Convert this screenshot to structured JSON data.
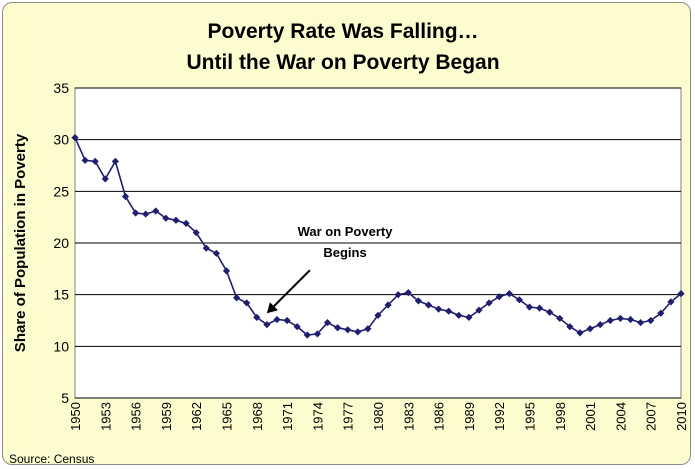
{
  "chart_data": {
    "type": "line",
    "title": [
      "Poverty Rate Was Falling…",
      "Until the War on Poverty Began"
    ],
    "ylabel": "Share of Population in Poverty",
    "xlabel": "",
    "ylim": [
      5,
      35
    ],
    "yticks": [
      5,
      10,
      15,
      20,
      25,
      30,
      35
    ],
    "xlim": [
      1950,
      2010
    ],
    "xticks": [
      1950,
      1953,
      1956,
      1959,
      1962,
      1965,
      1968,
      1971,
      1974,
      1977,
      1980,
      1983,
      1986,
      1989,
      1992,
      1995,
      1998,
      2001,
      2004,
      2007,
      2010
    ],
    "grid": "horizontal",
    "legend": "none",
    "series": [
      {
        "color": "#1f1f6e",
        "marker": "diamond",
        "x": [
          1950,
          1951,
          1952,
          1953,
          1954,
          1955,
          1956,
          1957,
          1958,
          1959,
          1960,
          1961,
          1962,
          1963,
          1964,
          1965,
          1966,
          1967,
          1968,
          1969,
          1970,
          1971,
          1972,
          1973,
          1974,
          1975,
          1976,
          1977,
          1978,
          1979,
          1980,
          1981,
          1982,
          1983,
          1984,
          1985,
          1986,
          1987,
          1988,
          1989,
          1990,
          1991,
          1992,
          1993,
          1994,
          1995,
          1996,
          1997,
          1998,
          1999,
          2000,
          2001,
          2002,
          2003,
          2004,
          2005,
          2006,
          2007,
          2008,
          2009,
          2010
        ],
        "values": [
          30.2,
          28.0,
          27.9,
          26.2,
          27.9,
          24.5,
          22.9,
          22.8,
          23.1,
          22.4,
          22.2,
          21.9,
          21.0,
          19.5,
          19.0,
          17.3,
          14.7,
          14.2,
          12.8,
          12.1,
          12.6,
          12.5,
          11.9,
          11.1,
          11.2,
          12.3,
          11.8,
          11.6,
          11.4,
          11.7,
          13.0,
          14.0,
          15.0,
          15.2,
          14.4,
          14.0,
          13.6,
          13.4,
          13.0,
          12.8,
          13.5,
          14.2,
          14.8,
          15.1,
          14.5,
          13.8,
          13.7,
          13.3,
          12.7,
          11.9,
          11.3,
          11.7,
          12.1,
          12.5,
          12.7,
          12.6,
          12.3,
          12.5,
          13.2,
          14.3,
          15.1
        ]
      }
    ],
    "annotations": [
      {
        "lines": [
          "War on Poverty",
          "Begins"
        ],
        "points_to": {
          "x": 1969,
          "y": 13.2
        }
      }
    ],
    "source": "Source: Census"
  }
}
